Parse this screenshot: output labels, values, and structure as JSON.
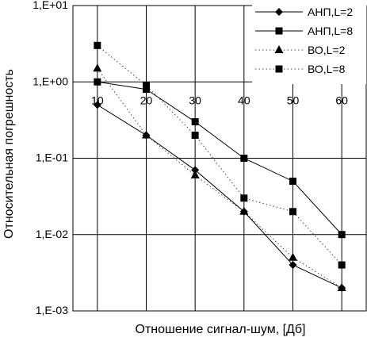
{
  "chart_data": {
    "type": "line",
    "title": "",
    "xlabel": "Отношение сигнал-шум, [Дб]",
    "ylabel": "Относительная погрешность",
    "x": [
      10,
      20,
      30,
      40,
      50,
      60
    ],
    "x_tick_labels": [
      "10",
      "20",
      "30",
      "40",
      "50",
      "60"
    ],
    "xlim": [
      5,
      65
    ],
    "y_scale": "log",
    "ylim": [
      0.001,
      10
    ],
    "y_tick_values": [
      10,
      1,
      0.1,
      0.01,
      0.001
    ],
    "y_tick_labels": [
      "1,E+01",
      "1,E+00",
      "1,E-01",
      "1,E-02",
      "1,E-03"
    ],
    "grid": true,
    "legend_position": "top-right",
    "series": [
      {
        "name": "АНП,L=2",
        "marker": "diamond",
        "line": "solid",
        "values": [
          0.5,
          0.2,
          0.07,
          0.02,
          0.004,
          0.002
        ]
      },
      {
        "name": "АНП,L=8",
        "marker": "square",
        "line": "solid",
        "values": [
          1.0,
          0.8,
          0.3,
          0.1,
          0.05,
          0.01
        ]
      },
      {
        "name": "ВО,L=2",
        "marker": "triangle",
        "line": "dotted",
        "values": [
          1.5,
          0.2,
          0.06,
          0.02,
          0.005,
          0.002
        ]
      },
      {
        "name": "ВО,L=8",
        "marker": "square",
        "line": "dotted",
        "values": [
          3.0,
          0.9,
          0.2,
          0.03,
          0.02,
          0.004
        ]
      }
    ]
  }
}
